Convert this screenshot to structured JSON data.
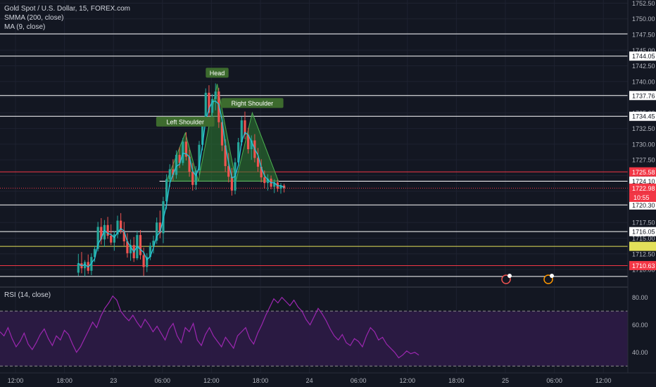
{
  "chart_data": {
    "type": "candlestick",
    "title": "Gold Spot / U.S. Dollar, 15, FOREX.com",
    "indicators": [
      "SMMA (200, close)",
      "MA (9, close)"
    ],
    "price_axis": {
      "ylim": [
        1707.2,
        1753.0
      ],
      "ticks": [
        "1752.50",
        "1750.00",
        "1747.50",
        "1745.00",
        "1742.50",
        "1740.00",
        "1737.50",
        "1735.00",
        "1732.50",
        "1730.00",
        "1727.50",
        "1725.00",
        "1722.50",
        "1720.00",
        "1717.50",
        "1715.00",
        "1712.50",
        "1710.00"
      ]
    },
    "time_axis": {
      "ticks": [
        "12:00",
        "18:00",
        "23",
        "06:00",
        "12:00",
        "18:00",
        "24",
        "06:00",
        "12:00",
        "18:00",
        "25",
        "06:00",
        "12:00"
      ]
    },
    "horizontal_levels": [
      {
        "value": 1747.6,
        "color": "#ffffff",
        "label": ""
      },
      {
        "value": 1744.05,
        "color": "#ffffff",
        "label": "1744.05"
      },
      {
        "value": 1737.76,
        "color": "#ffffff",
        "label": "1737.76"
      },
      {
        "value": 1734.45,
        "color": "#ffffff",
        "label": "1734.45"
      },
      {
        "value": 1725.58,
        "color": "#f23645",
        "label": "1725.58"
      },
      {
        "value": 1720.3,
        "color": "#ffffff",
        "label": "1720.30"
      },
      {
        "value": 1716.05,
        "color": "#ffffff",
        "label": "1716.05"
      },
      {
        "value": 1713.7,
        "color": "#e3e05a",
        "label": ""
      },
      {
        "value": 1710.63,
        "color": "#f23645",
        "label": "1710.63"
      },
      {
        "value": 1708.9,
        "color": "#ffffff",
        "label": ""
      }
    ],
    "neckline": {
      "value": 1724.1,
      "label": "1724.10"
    },
    "last_price": {
      "value": 1722.98,
      "label": "1722.98",
      "countdown": "10:55"
    },
    "pattern": {
      "name": "Head and Shoulders",
      "labels": [
        "Left Shoulder",
        "Head",
        "Right Shoulder"
      ],
      "points": [
        {
          "x": 18.5,
          "y": 1724.1
        },
        {
          "x": 20.8,
          "y": 1731.8
        },
        {
          "x": 22.4,
          "y": 1724.1
        },
        {
          "x": 24.7,
          "y": 1739.6
        },
        {
          "x": 27.0,
          "y": 1724.1
        },
        {
          "x": 29.0,
          "y": 1735.0
        },
        {
          "x": 32.2,
          "y": 1724.1
        },
        {
          "x": 33.0,
          "y": 1723.4
        }
      ]
    },
    "candles": [
      [
        7.7,
        1709.5,
        1712.5,
        1709.0,
        1711.0
      ],
      [
        8.1,
        1711.0,
        1712.8,
        1709.4,
        1710.2
      ],
      [
        8.5,
        1710.2,
        1711.5,
        1708.9,
        1711.2
      ],
      [
        8.9,
        1711.2,
        1712.4,
        1709.3,
        1709.8
      ],
      [
        9.3,
        1709.8,
        1712.6,
        1709.1,
        1712.0
      ],
      [
        9.7,
        1712.0,
        1713.8,
        1711.2,
        1713.3
      ],
      [
        10.1,
        1713.3,
        1717.6,
        1712.9,
        1716.8
      ],
      [
        10.5,
        1716.8,
        1718.2,
        1714.0,
        1714.8
      ],
      [
        10.9,
        1714.8,
        1717.9,
        1713.6,
        1717.1
      ],
      [
        11.3,
        1717.1,
        1718.4,
        1714.9,
        1715.4
      ],
      [
        11.7,
        1715.4,
        1717.2,
        1713.9,
        1714.3
      ],
      [
        12.1,
        1714.3,
        1716.1,
        1713.0,
        1715.6
      ],
      [
        12.5,
        1715.6,
        1718.6,
        1715.0,
        1717.8
      ],
      [
        12.9,
        1717.8,
        1719.0,
        1715.7,
        1716.2
      ],
      [
        13.3,
        1716.2,
        1717.6,
        1713.8,
        1714.5
      ],
      [
        13.7,
        1714.5,
        1715.8,
        1711.9,
        1712.6
      ],
      [
        14.1,
        1712.6,
        1714.8,
        1711.4,
        1713.9
      ],
      [
        14.5,
        1713.9,
        1715.2,
        1711.2,
        1711.8
      ],
      [
        14.9,
        1711.8,
        1716.2,
        1711.5,
        1715.5
      ],
      [
        15.3,
        1715.5,
        1716.3,
        1711.6,
        1712.3
      ],
      [
        15.7,
        1712.3,
        1713.5,
        1709.0,
        1710.4
      ],
      [
        16.1,
        1710.4,
        1712.6,
        1709.6,
        1712.0
      ],
      [
        16.5,
        1712.0,
        1714.3,
        1711.5,
        1713.8
      ],
      [
        16.9,
        1713.8,
        1715.4,
        1712.6,
        1714.6
      ],
      [
        17.3,
        1714.6,
        1718.3,
        1714.1,
        1717.5
      ],
      [
        17.7,
        1717.5,
        1719.4,
        1715.0,
        1715.8
      ],
      [
        18.1,
        1715.8,
        1721.6,
        1714.2,
        1720.9
      ],
      [
        18.5,
        1720.9,
        1725.2,
        1719.6,
        1724.4
      ],
      [
        18.9,
        1724.4,
        1726.8,
        1723.2,
        1726.0
      ],
      [
        19.3,
        1726.0,
        1727.6,
        1724.2,
        1725.1
      ],
      [
        19.7,
        1725.1,
        1729.0,
        1724.5,
        1728.3
      ],
      [
        20.1,
        1728.3,
        1729.5,
        1726.2,
        1727.0
      ],
      [
        20.5,
        1727.0,
        1731.0,
        1726.6,
        1730.4
      ],
      [
        20.9,
        1730.4,
        1731.9,
        1727.4,
        1728.0
      ],
      [
        21.3,
        1728.0,
        1729.1,
        1724.8,
        1725.6
      ],
      [
        21.7,
        1725.6,
        1727.0,
        1722.6,
        1723.5
      ],
      [
        22.1,
        1723.5,
        1726.5,
        1722.7,
        1725.8
      ],
      [
        22.5,
        1725.8,
        1730.5,
        1725.1,
        1729.9
      ],
      [
        22.9,
        1729.9,
        1734.2,
        1729.0,
        1733.6
      ],
      [
        23.3,
        1733.6,
        1738.9,
        1733.0,
        1738.2
      ],
      [
        23.7,
        1738.2,
        1739.4,
        1734.1,
        1735.0
      ],
      [
        24.1,
        1735.0,
        1738.0,
        1733.6,
        1737.2
      ],
      [
        24.5,
        1737.2,
        1739.7,
        1735.4,
        1738.4
      ],
      [
        24.9,
        1738.4,
        1739.0,
        1732.6,
        1733.5
      ],
      [
        25.3,
        1733.5,
        1734.4,
        1728.9,
        1729.8
      ],
      [
        25.7,
        1729.8,
        1730.8,
        1725.6,
        1726.5
      ],
      [
        26.1,
        1726.5,
        1728.6,
        1723.9,
        1724.8
      ],
      [
        26.5,
        1724.8,
        1726.2,
        1721.8,
        1722.6
      ],
      [
        26.9,
        1722.6,
        1727.8,
        1722.0,
        1727.1
      ],
      [
        27.3,
        1727.1,
        1731.0,
        1726.5,
        1730.3
      ],
      [
        27.7,
        1730.3,
        1734.4,
        1729.8,
        1733.8
      ],
      [
        28.1,
        1733.8,
        1735.2,
        1730.8,
        1731.5
      ],
      [
        28.5,
        1731.5,
        1732.6,
        1728.5,
        1729.2
      ],
      [
        28.9,
        1729.2,
        1731.4,
        1727.5,
        1730.6
      ],
      [
        29.3,
        1730.6,
        1731.6,
        1727.1,
        1727.8
      ],
      [
        29.7,
        1727.8,
        1729.4,
        1725.6,
        1726.4
      ],
      [
        30.1,
        1726.4,
        1727.6,
        1723.9,
        1724.7
      ],
      [
        30.5,
        1724.7,
        1725.8,
        1722.9,
        1723.8
      ],
      [
        30.9,
        1723.8,
        1725.2,
        1722.6,
        1724.5
      ],
      [
        31.3,
        1724.5,
        1725.0,
        1722.8,
        1723.2
      ],
      [
        31.7,
        1723.2,
        1724.4,
        1722.2,
        1723.9
      ],
      [
        32.1,
        1723.9,
        1724.3,
        1722.4,
        1722.9
      ],
      [
        32.5,
        1722.9,
        1723.8,
        1722.1,
        1723.4
      ],
      [
        32.9,
        1723.4,
        1723.7,
        1722.3,
        1722.98
      ]
    ],
    "rsi": {
      "label": "RSI (14, close)",
      "ylim": [
        25,
        87
      ],
      "ticks": [
        "80.00",
        "60.00",
        "40.00"
      ],
      "bands": [
        70,
        30
      ],
      "values": [
        55,
        52,
        58,
        50,
        44,
        48,
        54,
        46,
        42,
        47,
        53,
        57,
        50,
        45,
        52,
        49,
        56,
        53,
        46,
        40,
        44,
        50,
        56,
        62,
        58,
        66,
        72,
        76,
        81,
        78,
        70,
        66,
        63,
        67,
        62,
        58,
        64,
        60,
        55,
        59,
        54,
        49,
        57,
        61,
        52,
        47,
        58,
        55,
        61,
        49,
        45,
        53,
        58,
        52,
        48,
        44,
        51,
        47,
        43,
        52,
        55,
        58,
        50,
        46,
        54,
        60,
        67,
        73,
        79,
        76,
        80,
        77,
        74,
        78,
        73,
        70,
        64,
        60,
        66,
        72,
        68,
        63,
        57,
        52,
        49,
        53,
        47,
        45,
        50,
        48,
        44,
        52,
        58,
        55,
        49,
        51,
        46,
        43,
        40,
        36,
        38,
        41,
        39,
        40,
        38
      ]
    }
  }
}
